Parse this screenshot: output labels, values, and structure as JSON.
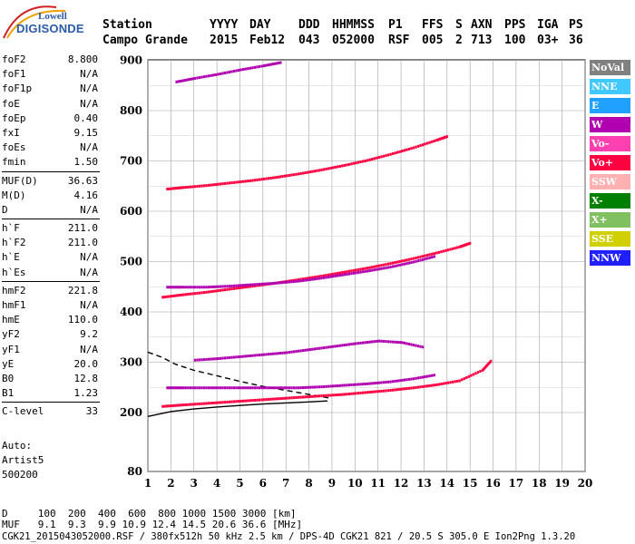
{
  "logo": {
    "brand_top": "Lowell",
    "brand_main": "DIGISONDE"
  },
  "header": {
    "labels": [
      "Station",
      "YYYY",
      "DAY",
      "DDD",
      "HHMMSS",
      "P1",
      "FFS",
      "S",
      "AXN",
      "PPS",
      "IGA",
      "PS"
    ],
    "values": [
      "Campo Grande",
      "2015",
      "Feb12",
      "043",
      "052000",
      "RSF",
      "005",
      "2",
      "713",
      "100",
      "03+",
      "36"
    ]
  },
  "params_group1": [
    {
      "name": "foF2",
      "value": "8.800"
    },
    {
      "name": "foF1",
      "value": "N/A"
    },
    {
      "name": "foF1p",
      "value": "N/A"
    },
    {
      "name": "foE",
      "value": "N/A"
    },
    {
      "name": "foEp",
      "value": "0.40"
    },
    {
      "name": "fxI",
      "value": "9.15"
    },
    {
      "name": "foEs",
      "value": "N/A"
    },
    {
      "name": "fmin",
      "value": "1.50"
    }
  ],
  "params_group2": [
    {
      "name": "MUF(D)",
      "value": "36.63"
    },
    {
      "name": "M(D)",
      "value": "4.16"
    },
    {
      "name": "D",
      "value": "N/A"
    }
  ],
  "params_group3": [
    {
      "name": "h`F",
      "value": "211.0"
    },
    {
      "name": "h`F2",
      "value": "211.0"
    },
    {
      "name": "h`E",
      "value": "N/A"
    },
    {
      "name": "h`Es",
      "value": "N/A"
    }
  ],
  "params_group4": [
    {
      "name": "hmF2",
      "value": "221.8"
    },
    {
      "name": "hmF1",
      "value": "N/A"
    },
    {
      "name": "hmE",
      "value": "110.0"
    },
    {
      "name": "yF2",
      "value": "9.2"
    },
    {
      "name": "yF1",
      "value": "N/A"
    },
    {
      "name": "yE",
      "value": "20.0"
    },
    {
      "name": "B0",
      "value": "12.8"
    },
    {
      "name": "B1",
      "value": "1.23"
    }
  ],
  "params_group5": [
    {
      "name": "C-level",
      "value": "33"
    }
  ],
  "auto": {
    "line1": "Auto:",
    "line2": "Artist5",
    "line3": "500200"
  },
  "legend": [
    {
      "label": "NoVal",
      "bg": "#808080",
      "fg": "#ffffff"
    },
    {
      "label": "NNE",
      "bg": "#40c8ff",
      "fg": "#ffffff"
    },
    {
      "label": "E",
      "bg": "#20a0ff",
      "fg": "#ffffff"
    },
    {
      "label": "W",
      "bg": "#b000b0",
      "fg": "#ffffff"
    },
    {
      "label": "Vo-",
      "bg": "#ff40b0",
      "fg": "#ffffff"
    },
    {
      "label": "Vo+",
      "bg": "#ff0040",
      "fg": "#ffffff"
    },
    {
      "label": "SSW",
      "bg": "#ffb0b0",
      "fg": "#ffffff"
    },
    {
      "label": "X-",
      "bg": "#008000",
      "fg": "#ffffff"
    },
    {
      "label": "X+",
      "bg": "#80c060",
      "fg": "#ffffff"
    },
    {
      "label": "SSE",
      "bg": "#d0d000",
      "fg": "#ffffff"
    },
    {
      "label": "NNW",
      "bg": "#2020ff",
      "fg": "#ffffff"
    }
  ],
  "bottom": {
    "d_row": "D     100  200  400  600  800 1000 1500 3000 [km]",
    "muf_row": "MUF   9.1  9.3  9.9 10.9 12.4 14.5 20.6 36.6 [MHz]",
    "file_row": "CGK21_2015043052000.RSF / 380fx512h 50 kHz 2.5 km / DPS-4D CGK21 821 / 20.5 S 305.0 E Ion2Png 1.3.20"
  },
  "chart_data": {
    "type": "scatter",
    "xlim": [
      1,
      20
    ],
    "ylim": [
      80,
      900
    ],
    "x_ticks": [
      1,
      2,
      3,
      4,
      5,
      6,
      7,
      8,
      9,
      10,
      11,
      12,
      13,
      14,
      15,
      16,
      17,
      18,
      19,
      20
    ],
    "y_ticks": [
      80,
      200,
      300,
      400,
      500,
      600,
      700,
      800,
      900
    ],
    "grid": true,
    "series": [
      {
        "name": "Vo+",
        "color": "#ff0040",
        "x": [
          1.6,
          2.5,
          3.5,
          4.5,
          5.5,
          6.5,
          7.5,
          8.5,
          9.5,
          10.5,
          11.5,
          12.5,
          13.5,
          14.5,
          15.5,
          15.9
        ],
        "y": [
          213,
          216,
          219,
          222,
          225,
          228,
          231,
          234,
          237,
          241,
          245,
          250,
          256,
          264,
          285,
          305
        ]
      },
      {
        "name": "W",
        "color": "#b000b0",
        "x": [
          1.8,
          2.5,
          3.5,
          4.5,
          5.5,
          6.5,
          7.5,
          8.5,
          9.5,
          10.5,
          11.5,
          12.5,
          13.5
        ],
        "y": [
          250,
          250,
          250,
          250,
          250,
          250,
          250,
          252,
          255,
          258,
          262,
          268,
          276
        ]
      },
      {
        "name": "Vo+",
        "color": "#ff0040",
        "x": [
          1.6,
          2.5,
          3.5,
          4.5,
          5.5,
          6.5,
          7.5,
          8.5,
          9.5,
          10.5,
          11.5,
          12.5,
          13.5,
          14.5,
          15.0
        ],
        "y": [
          430,
          435,
          440,
          446,
          452,
          458,
          465,
          472,
          480,
          488,
          497,
          507,
          518,
          530,
          538
        ]
      },
      {
        "name": "W",
        "color": "#b000b0",
        "x": [
          1.8,
          2.5,
          3.5,
          4.5,
          5.5,
          6.5,
          7.5,
          8.5,
          9.5,
          10.5,
          11.5,
          12.5,
          13.5
        ],
        "y": [
          450,
          450,
          450,
          452,
          455,
          458,
          462,
          468,
          475,
          482,
          490,
          500,
          512
        ]
      },
      {
        "name": "Vo+",
        "color": "#ff0040",
        "x": [
          1.8,
          2.5,
          3.5,
          4.5,
          5.5,
          6.5,
          7.5,
          8.5,
          9.5,
          10.5,
          11.5,
          12.5,
          13.5,
          14.0
        ],
        "y": [
          645,
          648,
          652,
          657,
          662,
          668,
          675,
          683,
          692,
          702,
          714,
          727,
          742,
          750
        ]
      },
      {
        "name": "W",
        "color": "#b000b0",
        "x": [
          2.2,
          3.0,
          4.0,
          5.0,
          6.0,
          6.8
        ],
        "y": [
          858,
          865,
          873,
          882,
          890,
          897
        ]
      },
      {
        "name": "W",
        "color": "#b000b0",
        "x": [
          3.0,
          4.0,
          5.0,
          6.0,
          7.0,
          8.0,
          9.0,
          10.0,
          11.0,
          12.0,
          13.0
        ],
        "y": [
          305,
          308,
          312,
          316,
          320,
          326,
          332,
          338,
          343,
          340,
          330
        ]
      }
    ],
    "profile_lines": [
      {
        "x": [
          1.0,
          2.0,
          3.0,
          4.0,
          5.0,
          6.0,
          7.0,
          8.0,
          8.8
        ],
        "y": [
          192,
          202,
          207,
          211,
          214,
          217,
          219,
          221,
          223
        ]
      },
      {
        "x": [
          1.0,
          1.6,
          2.2,
          3.0,
          4.0,
          5.0,
          6.0,
          7.0,
          8.0,
          9.0
        ],
        "y": [
          320,
          310,
          296,
          284,
          273,
          262,
          252,
          244,
          236,
          228
        ]
      }
    ]
  }
}
